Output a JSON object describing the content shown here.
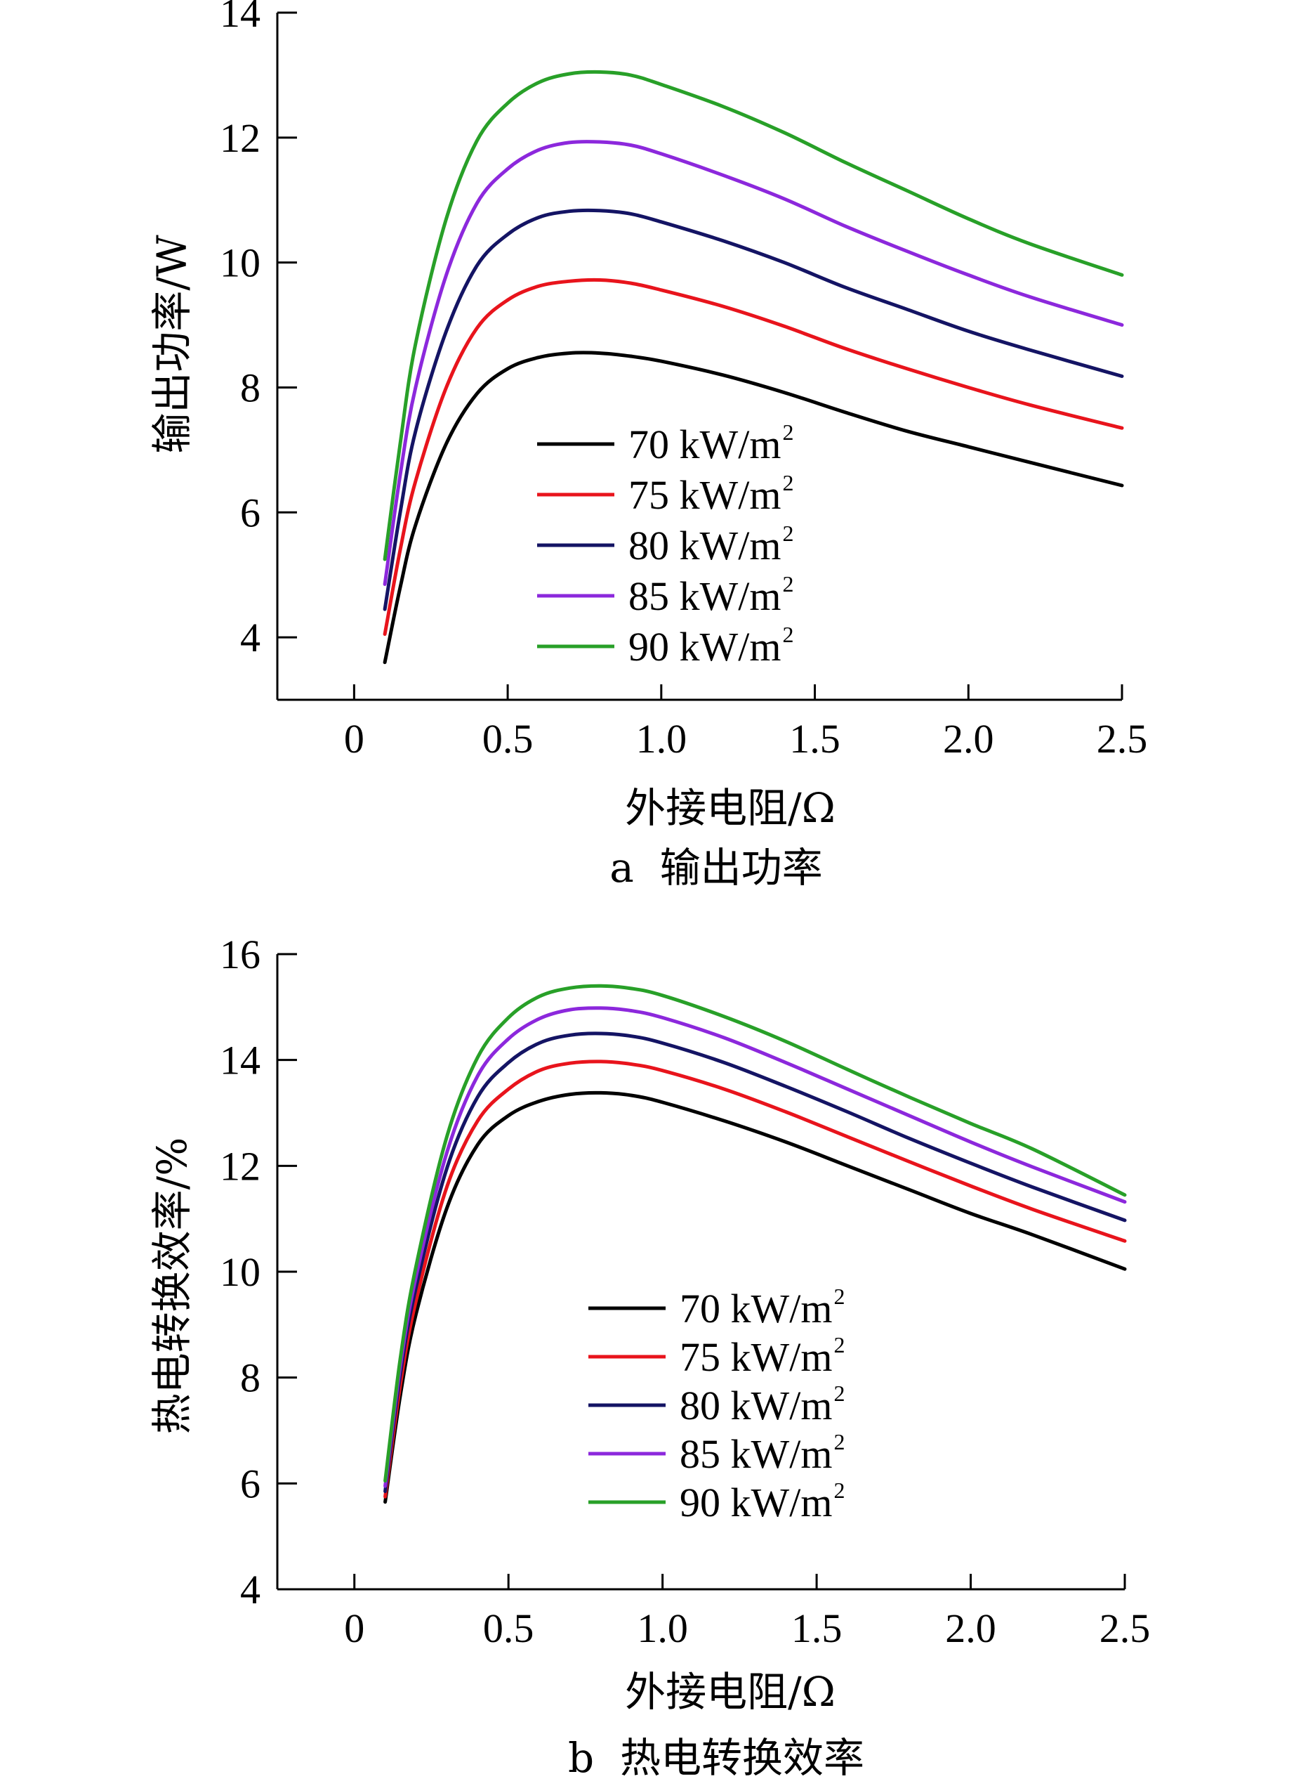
{
  "chart_data": [
    {
      "type": "line",
      "caption": "a  输出功率",
      "xlabel": "外接电阻/Ω",
      "ylabel": "输出功率/W",
      "xlim": [
        -0.25,
        2.5
      ],
      "ylim": [
        3,
        14
      ],
      "x_ticks": [
        0,
        0.5,
        1.0,
        1.5,
        2.0,
        2.5
      ],
      "x_tick_labels": [
        "0",
        "0.5",
        "1.0",
        "1.5",
        "2.0",
        "2.5"
      ],
      "y_ticks": [
        4,
        6,
        8,
        10,
        12,
        14
      ],
      "y_tick_labels": [
        "4",
        "6",
        "8",
        "10",
        "12",
        "14"
      ],
      "legend_position": "center",
      "x": [
        0.1,
        0.15,
        0.2,
        0.3,
        0.4,
        0.5,
        0.6,
        0.7,
        0.8,
        0.9,
        1.0,
        1.2,
        1.4,
        1.6,
        1.8,
        2.0,
        2.2,
        2.5
      ],
      "series": [
        {
          "name": "70 kW/m",
          "name_sup": "2",
          "color": "#000000",
          "values": [
            3.6,
            4.8,
            5.8,
            7.1,
            7.9,
            8.3,
            8.48,
            8.55,
            8.55,
            8.5,
            8.42,
            8.2,
            7.92,
            7.6,
            7.3,
            7.05,
            6.8,
            6.43
          ]
        },
        {
          "name": "75 kW/m",
          "name_sup": "2",
          "color": "#e8141c",
          "values": [
            4.05,
            5.4,
            6.5,
            8.0,
            8.95,
            9.4,
            9.62,
            9.7,
            9.72,
            9.67,
            9.56,
            9.3,
            8.98,
            8.62,
            8.3,
            8.0,
            7.72,
            7.35
          ]
        },
        {
          "name": "80 kW/m",
          "name_sup": "2",
          "color": "#141464",
          "values": [
            4.45,
            6.0,
            7.3,
            8.9,
            9.95,
            10.45,
            10.72,
            10.82,
            10.83,
            10.78,
            10.65,
            10.35,
            10.0,
            9.6,
            9.25,
            8.9,
            8.6,
            8.18
          ]
        },
        {
          "name": "85 kW/m",
          "name_sup": "2",
          "color": "#8c28dc",
          "values": [
            4.85,
            6.6,
            8.0,
            9.8,
            10.95,
            11.5,
            11.8,
            11.92,
            11.93,
            11.88,
            11.74,
            11.4,
            11.02,
            10.58,
            10.18,
            9.8,
            9.45,
            9.0
          ]
        },
        {
          "name": "90 kW/m",
          "name_sup": "2",
          "color": "#28a028",
          "values": [
            5.25,
            7.1,
            8.7,
            10.7,
            11.95,
            12.55,
            12.88,
            13.02,
            13.05,
            13.0,
            12.85,
            12.5,
            12.08,
            11.6,
            11.15,
            10.7,
            10.3,
            9.8
          ]
        }
      ]
    },
    {
      "type": "line",
      "caption": "b  热电转换效率",
      "xlabel": "外接电阻/Ω",
      "ylabel": "热电转换效率/%",
      "xlim": [
        -0.25,
        2.5
      ],
      "ylim": [
        4,
        16
      ],
      "x_ticks": [
        0,
        0.5,
        1.0,
        1.5,
        2.0,
        2.5
      ],
      "x_tick_labels": [
        "0",
        "0.5",
        "1.0",
        "1.5",
        "2.0",
        "2.5"
      ],
      "y_ticks": [
        4,
        6,
        8,
        10,
        12,
        14,
        16
      ],
      "y_tick_labels": [
        "4",
        "6",
        "8",
        "10",
        "12",
        "14",
        "16"
      ],
      "legend_position": "center",
      "x": [
        0.1,
        0.15,
        0.2,
        0.3,
        0.4,
        0.5,
        0.6,
        0.7,
        0.8,
        0.9,
        1.0,
        1.2,
        1.4,
        1.6,
        1.8,
        2.0,
        2.2,
        2.5
      ],
      "series": [
        {
          "name": "70 kW/m",
          "name_sup": "2",
          "color": "#000000",
          "values": [
            5.65,
            7.7,
            9.2,
            11.2,
            12.4,
            12.95,
            13.22,
            13.35,
            13.38,
            13.33,
            13.2,
            12.85,
            12.45,
            12.0,
            11.55,
            11.1,
            10.7,
            10.05
          ]
        },
        {
          "name": "75 kW/m",
          "name_sup": "2",
          "color": "#e8141c",
          "values": [
            5.75,
            7.9,
            9.45,
            11.6,
            12.85,
            13.45,
            13.8,
            13.94,
            13.97,
            13.92,
            13.8,
            13.45,
            13.02,
            12.55,
            12.08,
            11.62,
            11.18,
            10.58
          ]
        },
        {
          "name": "80 kW/m",
          "name_sup": "2",
          "color": "#141464",
          "values": [
            5.85,
            8.1,
            9.7,
            11.95,
            13.3,
            13.95,
            14.32,
            14.47,
            14.5,
            14.45,
            14.32,
            13.95,
            13.5,
            13.02,
            12.52,
            12.05,
            11.6,
            10.97
          ]
        },
        {
          "name": "85 kW/m",
          "name_sup": "2",
          "color": "#8c28dc",
          "values": [
            5.95,
            8.25,
            9.9,
            12.25,
            13.7,
            14.4,
            14.78,
            14.95,
            14.98,
            14.93,
            14.8,
            14.42,
            13.95,
            13.45,
            12.95,
            12.45,
            11.98,
            11.32
          ]
        },
        {
          "name": "90 kW/m",
          "name_sup": "2",
          "color": "#28a028",
          "values": [
            6.05,
            8.4,
            10.1,
            12.55,
            14.05,
            14.8,
            15.2,
            15.36,
            15.4,
            15.35,
            15.22,
            14.82,
            14.35,
            13.82,
            13.3,
            12.8,
            12.32,
            11.45
          ]
        }
      ]
    }
  ]
}
